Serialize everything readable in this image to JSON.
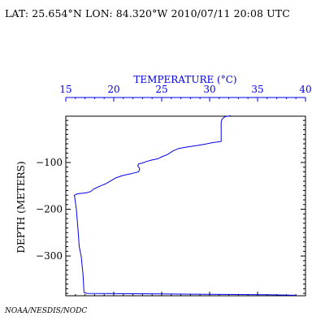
{
  "header": {
    "text": "LAT: 25.654°N LON: 84.320°W 2010/07/11 20:08 UTC"
  },
  "footer": {
    "text": "NOAA/NESDIS/NODC"
  },
  "colors": {
    "axis_top": "#0000ee",
    "profile": "#0000ee",
    "frame": "#000000"
  },
  "chart_data": {
    "type": "line",
    "title": "TEMPERATURE (°C)",
    "xlabel": "TEMPERATURE (°C)",
    "ylabel": "DEPTH (METERS)",
    "x_axis_position": "top",
    "xlim": [
      15,
      40
    ],
    "ylim": [
      -385,
      -1
    ],
    "x_ticks": [
      15,
      20,
      25,
      30,
      35,
      40
    ],
    "x_tick_labels": [
      "15",
      "20",
      "25",
      "30",
      "35",
      "40"
    ],
    "y_ticks": [
      -100,
      -200,
      -300
    ],
    "y_tick_labels": [
      "−100",
      "−200",
      "−300"
    ],
    "grid": false,
    "series": [
      {
        "x": [
          32.2,
          31.6,
          31.3,
          31.2,
          31.2,
          30.2,
          29.5,
          28.6,
          27.6,
          26.8,
          26.2,
          25.6,
          25.1,
          24.6,
          23.9,
          23.4,
          23.0,
          22.6,
          22.5,
          22.7,
          22.6,
          21.8,
          20.9,
          20.2,
          19.7,
          19.2,
          18.4,
          17.9,
          17.6,
          17.1,
          16.2,
          15.9,
          16.1,
          16.3,
          16.4,
          16.6,
          16.8,
          16.9,
          17.2,
          25,
          30,
          36,
          39
        ],
        "y": [
          0,
          -2,
          -7,
          -14,
          -55,
          -58,
          -61,
          -64,
          -67,
          -70,
          -75,
          -83,
          -87,
          -92,
          -95,
          -98,
          -101,
          -103,
          -107,
          -113,
          -120,
          -124,
          -128,
          -133,
          -139,
          -145,
          -152,
          -157,
          -162,
          -165,
          -167,
          -170,
          -200,
          -250,
          -280,
          -300,
          -340,
          -378,
          -380,
          -381,
          -382,
          -383,
          -384
        ]
      }
    ]
  }
}
